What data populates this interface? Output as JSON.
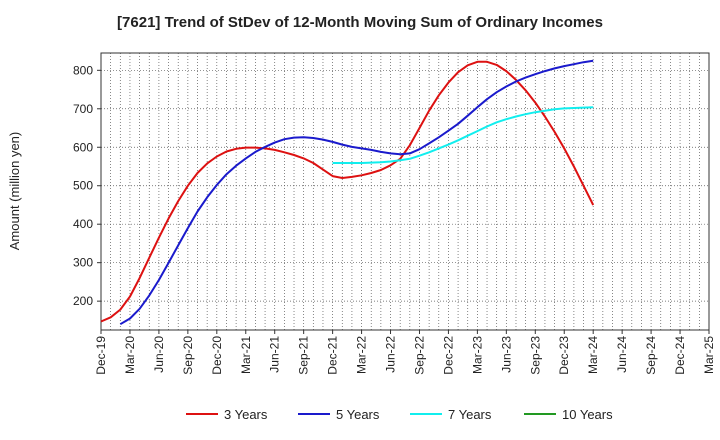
{
  "chart_data": {
    "type": "line",
    "title": "[7621]  Trend of StDev of 12-Month Moving Sum of Ordinary Incomes",
    "xlabel": "",
    "ylabel": "Amount (million yen)",
    "ylim": [
      125,
      845
    ],
    "yticks": [
      200,
      300,
      400,
      500,
      600,
      700,
      800
    ],
    "xticks": [
      "Dec-19",
      "Mar-20",
      "Jun-20",
      "Sep-20",
      "Dec-20",
      "Mar-21",
      "Jun-21",
      "Sep-21",
      "Dec-21",
      "Mar-22",
      "Jun-22",
      "Sep-22",
      "Dec-22",
      "Mar-23",
      "Jun-23",
      "Sep-23",
      "Dec-23",
      "Mar-24",
      "Jun-24",
      "Sep-24",
      "Dec-24",
      "Mar-25"
    ],
    "grid": true,
    "legend_position": "bottom",
    "series": [
      {
        "name": "3 Years",
        "color": "#dd1111",
        "values": [
          147,
          158,
          178,
          212,
          260,
          313,
          365,
          415,
          460,
          500,
          533,
          558,
          576,
          589,
          596,
          599,
          599,
          597,
          593,
          587,
          580,
          571,
          559,
          542,
          525,
          520,
          523,
          527,
          533,
          541,
          553,
          570,
          605,
          650,
          695,
          735,
          768,
          795,
          813,
          822,
          822,
          814,
          798,
          775,
          748,
          716,
          680,
          640,
          597,
          550,
          500,
          450
        ]
      },
      {
        "name": "5 Years",
        "color": "#1a1acc",
        "values": [
          null,
          null,
          140,
          155,
          180,
          215,
          255,
          300,
          345,
          390,
          433,
          470,
          502,
          530,
          552,
          571,
          588,
          601,
          612,
          621,
          625,
          626,
          624,
          620,
          614,
          607,
          601,
          597,
          593,
          588,
          584,
          582,
          584,
          595,
          610,
          626,
          643,
          661,
          682,
          704,
          725,
          743,
          758,
          771,
          781,
          790,
          798,
          805,
          811,
          816,
          821,
          825
        ]
      },
      {
        "name": "7 Years",
        "color": "#11eeee",
        "values": [
          null,
          null,
          null,
          null,
          null,
          null,
          null,
          null,
          null,
          null,
          null,
          null,
          null,
          null,
          null,
          null,
          null,
          null,
          null,
          null,
          null,
          null,
          null,
          null,
          559,
          559,
          559,
          559,
          560,
          561,
          563,
          566,
          570,
          578,
          587,
          597,
          607,
          618,
          630,
          642,
          654,
          665,
          673,
          680,
          686,
          691,
          695,
          699,
          701,
          702,
          703,
          704
        ]
      },
      {
        "name": "10 Years",
        "color": "#229922",
        "values": []
      }
    ]
  }
}
